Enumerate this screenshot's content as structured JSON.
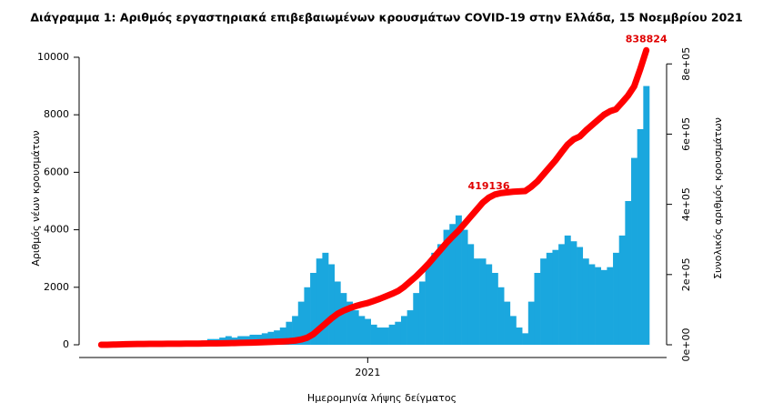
{
  "chart_data": {
    "type": "bar-line",
    "title": "Διάγραμμα 1: Αριθμός εργαστηριακά επιβεβαιωμένων κρουσμάτων COVID-19 στην Ελλάδα, 15 Νοεμβρίου 2021",
    "x_label": "Ημερομηνία λήψης δείγματος",
    "y_label": "Αριθμός νέων κρουσμάτων",
    "y2_label": "Συνολικός αριθμός κρουσμάτων",
    "categories": [
      null,
      null,
      null,
      null,
      null,
      null,
      null,
      null,
      null,
      null,
      null,
      null,
      null,
      null,
      null,
      null,
      null,
      null,
      null,
      null,
      null,
      null,
      null,
      null,
      null,
      null,
      null,
      null,
      null,
      null,
      null,
      null,
      null,
      null,
      null,
      null,
      null,
      null,
      null,
      null,
      null,
      null,
      null,
      null,
      "2021",
      null,
      null,
      null,
      null,
      null,
      null,
      null,
      null,
      null,
      null,
      null,
      null,
      null,
      null,
      null,
      null,
      null,
      null,
      null,
      null,
      null,
      null,
      null,
      null,
      null,
      null,
      null,
      null,
      null,
      null,
      null,
      null,
      null,
      null,
      null,
      null,
      null,
      null,
      null,
      null,
      null,
      null,
      null,
      null,
      null,
      null
    ],
    "series": [
      {
        "color": "#1aa7de",
        "values": [
          10,
          30,
          50,
          80,
          60,
          40,
          30,
          20,
          15,
          15,
          20,
          20,
          25,
          30,
          40,
          60,
          100,
          150,
          200,
          200,
          250,
          300,
          250,
          300,
          300,
          350,
          350,
          400,
          450,
          500,
          600,
          800,
          1000,
          1500,
          2000,
          2500,
          3000,
          3200,
          2800,
          2200,
          1800,
          1500,
          1200,
          1000,
          900,
          700,
          600,
          600,
          700,
          800,
          1000,
          1200,
          1800,
          2200,
          2800,
          3200,
          3500,
          4000,
          4200,
          4500,
          4000,
          3500,
          3000,
          3000,
          2800,
          2500,
          2000,
          1500,
          1000,
          600,
          400,
          1500,
          2500,
          3000,
          3200,
          3300,
          3500,
          3800,
          3600,
          3400,
          3000,
          2800,
          2700,
          2600,
          2700,
          3200,
          3800,
          5000,
          6500,
          7500,
          9000
        ]
      },
      {
        "color": "#ff0000",
        "axis": "y2",
        "values": [
          0,
          100,
          500,
          1000,
          1500,
          2000,
          2200,
          2400,
          2500,
          2600,
          2700,
          2800,
          2900,
          3000,
          3100,
          3200,
          3400,
          3600,
          3800,
          4000,
          4300,
          4600,
          5000,
          5400,
          5800,
          6300,
          6800,
          7400,
          8000,
          8700,
          9500,
          10500,
          12000,
          15000,
          20000,
          30000,
          45000,
          60000,
          75000,
          88000,
          97000,
          104000,
          110000,
          115000,
          119000,
          125000,
          131000,
          138000,
          145000,
          153000,
          165000,
          180000,
          195000,
          212000,
          230000,
          250000,
          270000,
          290000,
          308000,
          325000,
          345000,
          365000,
          385000,
          405000,
          419136,
          428000,
          432000,
          434000,
          436000,
          437000,
          438000,
          450000,
          465000,
          485000,
          505000,
          525000,
          548000,
          570000,
          585000,
          593000,
          610000,
          625000,
          640000,
          655000,
          665000,
          671000,
          690000,
          710000,
          736000,
          785000,
          838824
        ],
        "value_labels": [
          null,
          null,
          null,
          null,
          null,
          null,
          null,
          null,
          null,
          null,
          null,
          null,
          null,
          null,
          null,
          null,
          null,
          null,
          null,
          null,
          null,
          null,
          null,
          null,
          null,
          null,
          null,
          null,
          null,
          null,
          null,
          null,
          null,
          null,
          null,
          null,
          null,
          null,
          null,
          null,
          null,
          null,
          null,
          null,
          null,
          null,
          null,
          null,
          null,
          null,
          null,
          null,
          null,
          null,
          null,
          null,
          null,
          null,
          null,
          null,
          null,
          null,
          null,
          null,
          "419136",
          null,
          null,
          null,
          null,
          null,
          null,
          null,
          null,
          null,
          null,
          null,
          null,
          null,
          null,
          null,
          null,
          null,
          null,
          null,
          null,
          null,
          null,
          null,
          null,
          null,
          "838824"
        ]
      }
    ],
    "ylim": [
      0,
      10600
    ],
    "yticks": [
      0,
      2000,
      4000,
      6000,
      8000,
      10000
    ],
    "y2lim": [
      0,
      868000
    ],
    "y2ticks": [
      {
        "value": 0,
        "label": "0e+00"
      },
      {
        "value": 200000,
        "label": "2e+05"
      },
      {
        "value": 400000,
        "label": "4e+05"
      },
      {
        "value": 600000,
        "label": "6e+05"
      },
      {
        "value": 800000,
        "label": "8e+05"
      }
    ]
  }
}
